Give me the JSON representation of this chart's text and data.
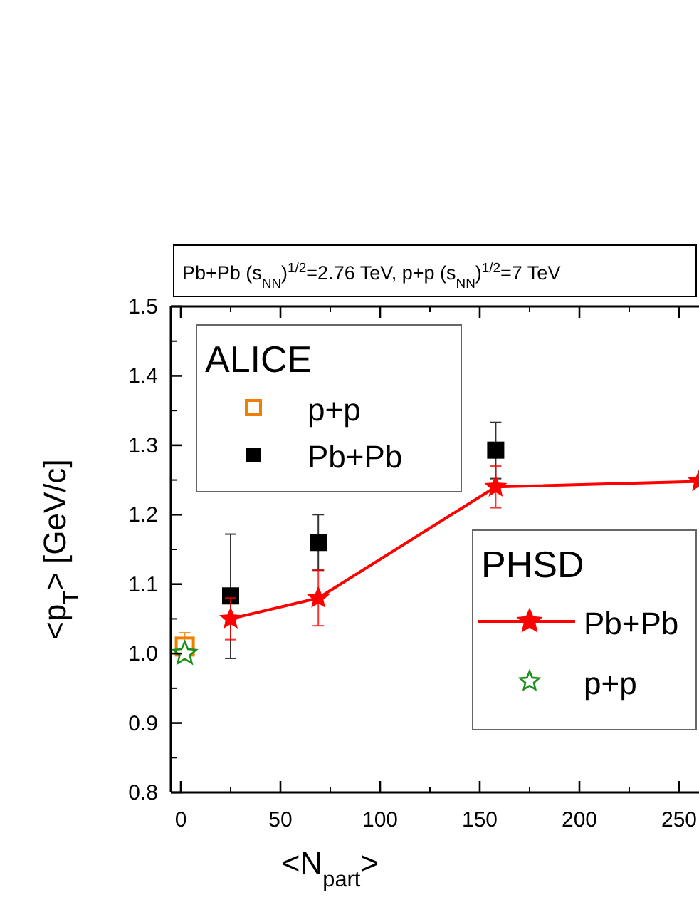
{
  "chart_data": {
    "type": "scatter",
    "title": "Pb+Pb (s$_{NN}$)$^{1/2}$=2.76 TeV, p+p (s$_{NN}$)$^{1/2}$=7 TeV",
    "xlabel": "<N$_{part}$>",
    "ylabel": "<p$_{T}$> [GeV/c]",
    "annotations": [
      "ALICE",
      "PHSD"
    ],
    "legend": "right",
    "xlim": [
      -5,
      260
    ],
    "ylim": [
      0.8,
      1.5
    ],
    "xticks": [
      0,
      50,
      100,
      150,
      200,
      250
    ],
    "yticks": [
      0.8,
      0.9,
      {
        "value": 1,
        "label": "1.0"
      },
      1.1,
      1.2,
      1.3,
      1.4,
      1.5
    ],
    "series": [
      {
        "name": "p+p",
        "type": "scatter",
        "marker": "square",
        "color": "#f07f00",
        "x": [
          2
        ],
        "values": [
          1.01
        ],
        "errors": [
          0.02
        ]
      },
      {
        "name": "Pb+Pb",
        "type": "scatter",
        "marker": "square",
        "color": "#000000",
        "x": [
          25,
          69,
          158
        ],
        "values": [
          1.083,
          1.16,
          1.293
        ],
        "errors": [
          [
            0.993,
            1.172
          ],
          [
            1.12,
            1.2
          ],
          [
            1.252,
            1.333
          ]
        ]
      },
      {
        "name": "Pb+Pb",
        "type": "line",
        "marker": "star",
        "color": "#ff0000",
        "x": [
          25,
          69,
          158,
          260
        ],
        "values": [
          1.05,
          1.08,
          1.24,
          1.248
        ],
        "errors": [
          [
            1.02,
            1.08
          ],
          [
            1.04,
            1.12
          ],
          [
            1.21,
            1.27
          ],
          null
        ]
      },
      {
        "name": "p+p",
        "type": "scatter",
        "marker": "star",
        "color": "#1a8f1a",
        "x": [
          2
        ],
        "values": [
          1.0
        ]
      }
    ]
  }
}
